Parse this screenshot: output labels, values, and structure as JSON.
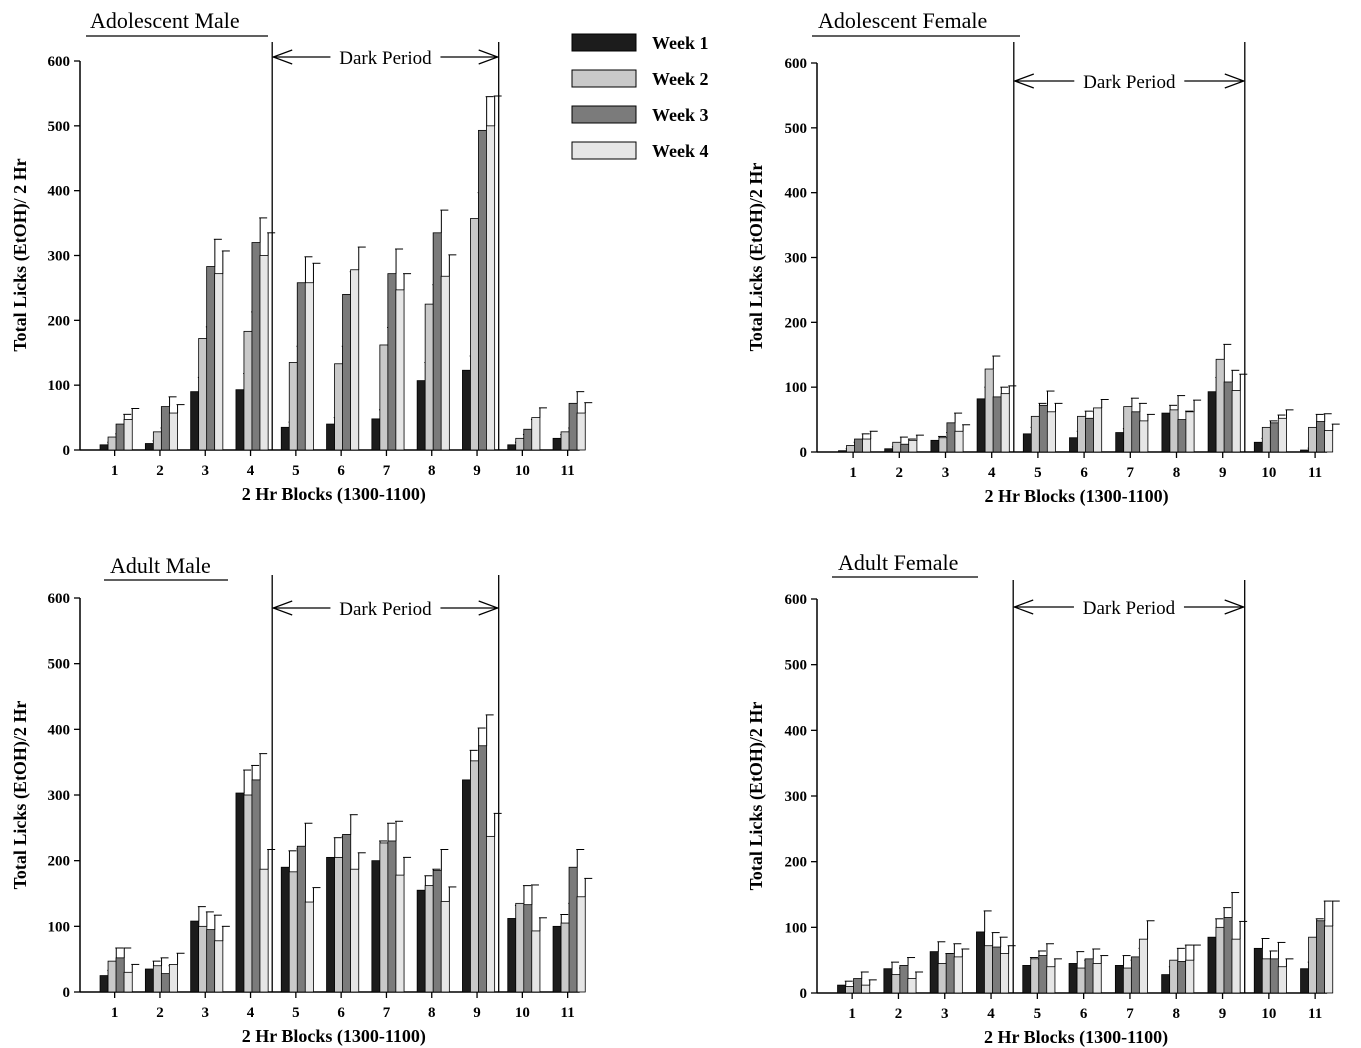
{
  "legend": {
    "entries": [
      {
        "label": "Week 1",
        "color": "#1c1c1c"
      },
      {
        "label": "Week 2",
        "color": "#c9c9c9"
      },
      {
        "label": "Week 3",
        "color": "#7b7b7b"
      },
      {
        "label": "Week 4",
        "color": "#e6e6e6"
      }
    ]
  },
  "chart_data": [
    {
      "type": "bar",
      "title": "Adolescent Male",
      "xlabel": "2 Hr Blocks (1300-1100)",
      "ylabel": "Total Licks (EtOH)/ 2 Hr",
      "ylim": [
        0,
        600
      ],
      "yticks": [
        0,
        100,
        200,
        300,
        400,
        500,
        600
      ],
      "categories": [
        "1",
        "2",
        "3",
        "4",
        "5",
        "6",
        "7",
        "8",
        "9",
        "10",
        "11"
      ],
      "dark_period": {
        "label": "Dark Period",
        "from_block": 5,
        "to_block": 9
      },
      "series": [
        {
          "name": "Week 1",
          "values": [
            8,
            10,
            90,
            93,
            35,
            40,
            48,
            107,
            123,
            8,
            18
          ],
          "errors": [
            4,
            4,
            22,
            25,
            8,
            10,
            14,
            28,
            22,
            4,
            6
          ]
        },
        {
          "name": "Week 2",
          "values": [
            20,
            28,
            172,
            183,
            135,
            133,
            162,
            225,
            357,
            18,
            28
          ],
          "errors": [
            5,
            6,
            18,
            30,
            25,
            27,
            27,
            30,
            40,
            6,
            6
          ]
        },
        {
          "name": "Week 3",
          "values": [
            40,
            67,
            283,
            320,
            258,
            240,
            272,
            335,
            493,
            32,
            72
          ],
          "errors": [
            15,
            15,
            42,
            38,
            40,
            35,
            38,
            35,
            52,
            15,
            18
          ]
        },
        {
          "name": "Week 4",
          "values": [
            47,
            57,
            272,
            300,
            258,
            278,
            247,
            268,
            500,
            50,
            57
          ],
          "errors": [
            17,
            13,
            35,
            35,
            30,
            35,
            25,
            33,
            46,
            15,
            16
          ]
        }
      ]
    },
    {
      "type": "bar",
      "title": "Adolescent Female",
      "xlabel": "2 Hr Blocks (1300-1100)",
      "ylabel": "Total Licks (EtOH)/2 Hr",
      "ylim": [
        0,
        600
      ],
      "yticks": [
        0,
        100,
        200,
        300,
        400,
        500,
        600
      ],
      "categories": [
        "1",
        "2",
        "3",
        "4",
        "5",
        "6",
        "7",
        "8",
        "9",
        "10",
        "11"
      ],
      "dark_period": {
        "label": "Dark Period",
        "from_block": 5,
        "to_block": 9
      },
      "series": [
        {
          "name": "Week 1",
          "values": [
            2,
            5,
            18,
            82,
            28,
            22,
            30,
            60,
            93,
            15,
            3
          ],
          "errors": [
            3,
            3,
            6,
            18,
            10,
            10,
            6,
            12,
            22,
            6,
            3
          ]
        },
        {
          "name": "Week 2",
          "values": [
            10,
            15,
            22,
            128,
            55,
            55,
            70,
            65,
            143,
            38,
            38
          ],
          "errors": [
            5,
            8,
            8,
            20,
            20,
            8,
            13,
            22,
            23,
            10,
            20
          ]
        },
        {
          "name": "Week 3",
          "values": [
            20,
            12,
            45,
            85,
            72,
            52,
            62,
            50,
            108,
            45,
            47
          ],
          "errors": [
            8,
            8,
            15,
            15,
            22,
            10,
            13,
            13,
            18,
            12,
            12
          ]
        },
        {
          "name": "Week 4",
          "values": [
            20,
            18,
            32,
            90,
            62,
            68,
            48,
            62,
            95,
            52,
            33
          ],
          "errors": [
            12,
            8,
            10,
            12,
            13,
            13,
            10,
            18,
            25,
            13,
            10
          ]
        }
      ]
    },
    {
      "type": "bar",
      "title": "Adult Male",
      "xlabel": "2 Hr Blocks (1300-1100)",
      "ylabel": "Total Licks (EtOH)/2 Hr",
      "ylim": [
        0,
        600
      ],
      "yticks": [
        0,
        100,
        200,
        300,
        400,
        500,
        600
      ],
      "categories": [
        "1",
        "2",
        "3",
        "4",
        "5",
        "6",
        "7",
        "8",
        "9",
        "10",
        "11"
      ],
      "dark_period": {
        "label": "Dark Period",
        "from_block": 5,
        "to_block": 9
      },
      "series": [
        {
          "name": "Week 1",
          "values": [
            25,
            35,
            108,
            303,
            190,
            205,
            200,
            155,
            323,
            112,
            100
          ],
          "errors": [
            8,
            12,
            22,
            35,
            25,
            30,
            30,
            22,
            45,
            20,
            18
          ]
        },
        {
          "name": "Week 2",
          "values": [
            47,
            40,
            100,
            300,
            183,
            205,
            227,
            162,
            352,
            135,
            105
          ],
          "errors": [
            20,
            12,
            22,
            45,
            35,
            32,
            30,
            25,
            50,
            27,
            30
          ]
        },
        {
          "name": "Week 3",
          "values": [
            52,
            28,
            95,
            323,
            222,
            240,
            230,
            185,
            375,
            133,
            190
          ],
          "errors": [
            15,
            12,
            22,
            40,
            35,
            30,
            30,
            32,
            47,
            30,
            27
          ]
        },
        {
          "name": "Week 4",
          "values": [
            30,
            42,
            78,
            187,
            137,
            187,
            178,
            138,
            237,
            93,
            145
          ],
          "errors": [
            12,
            17,
            22,
            30,
            22,
            25,
            27,
            22,
            35,
            20,
            28
          ]
        }
      ]
    },
    {
      "type": "bar",
      "title": "Adult Female",
      "xlabel": "2 Hr Blocks (1300-1100)",
      "ylabel": "Total Licks (EtOH)/2 Hr",
      "ylim": [
        0,
        600
      ],
      "yticks": [
        0,
        100,
        200,
        300,
        400,
        500,
        600
      ],
      "categories": [
        "1",
        "2",
        "3",
        "4",
        "5",
        "6",
        "7",
        "8",
        "9",
        "10",
        "11"
      ],
      "dark_period": {
        "label": "Dark Period",
        "from_block": 5,
        "to_block": 9
      },
      "series": [
        {
          "name": "Week 1",
          "values": [
            12,
            37,
            63,
            93,
            42,
            45,
            42,
            28,
            85,
            68,
            37
          ],
          "errors": [
            6,
            10,
            15,
            32,
            12,
            18,
            15,
            12,
            28,
            15,
            10
          ]
        },
        {
          "name": "Week 2",
          "values": [
            10,
            28,
            45,
            72,
            52,
            38,
            38,
            50,
            100,
            52,
            85
          ],
          "errors": [
            5,
            10,
            15,
            20,
            12,
            12,
            12,
            18,
            30,
            12,
            28
          ]
        },
        {
          "name": "Week 3",
          "values": [
            22,
            42,
            60,
            70,
            57,
            52,
            55,
            48,
            115,
            52,
            110
          ],
          "errors": [
            10,
            12,
            15,
            15,
            18,
            15,
            13,
            25,
            38,
            25,
            30
          ]
        },
        {
          "name": "Week 4",
          "values": [
            12,
            22,
            55,
            60,
            40,
            45,
            82,
            50,
            82,
            40,
            102
          ],
          "errors": [
            8,
            10,
            12,
            12,
            12,
            12,
            28,
            23,
            27,
            12,
            38
          ]
        }
      ]
    }
  ]
}
